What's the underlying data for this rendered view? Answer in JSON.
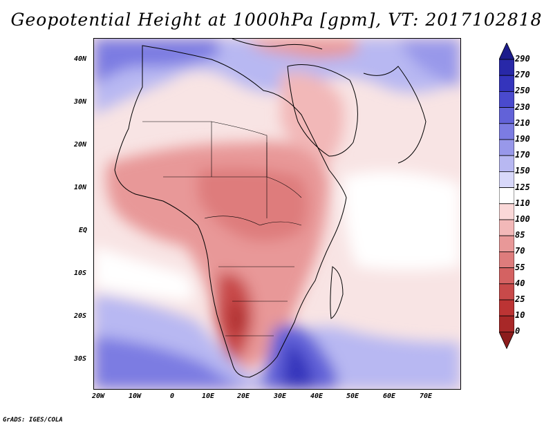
{
  "title": "Geopotential Height at 1000hPa [gpm], VT: 2017102818",
  "credit": "GrADS: IGES/COLA",
  "map": {
    "variable": "Geopotential Height",
    "level": "1000hPa",
    "units": "gpm",
    "valid_time": "2017102818",
    "lat_labels": [
      "40N",
      "30N",
      "20N",
      "10N",
      "EQ",
      "10S",
      "20S",
      "30S"
    ],
    "lon_labels": [
      "20W",
      "10W",
      "0",
      "10E",
      "20E",
      "30E",
      "40E",
      "50E",
      "60E",
      "70E"
    ]
  },
  "colorbar": {
    "levels": [
      "290",
      "270",
      "250",
      "230",
      "210",
      "190",
      "170",
      "150",
      "125",
      "110",
      "100",
      "85",
      "70",
      "55",
      "40",
      "25",
      "10",
      "0"
    ],
    "colors": [
      "#1c1c8c",
      "#2828a8",
      "#3434bc",
      "#4a4ace",
      "#6262d8",
      "#7c7ce2",
      "#9898ea",
      "#b8b8f2",
      "#d8d8fa",
      "#ffffff",
      "#fad8d8",
      "#f2b8b8",
      "#e89898",
      "#de7c7c",
      "#d46262",
      "#c84a4a",
      "#bc3434",
      "#a82828",
      "#8c1c1c"
    ]
  }
}
